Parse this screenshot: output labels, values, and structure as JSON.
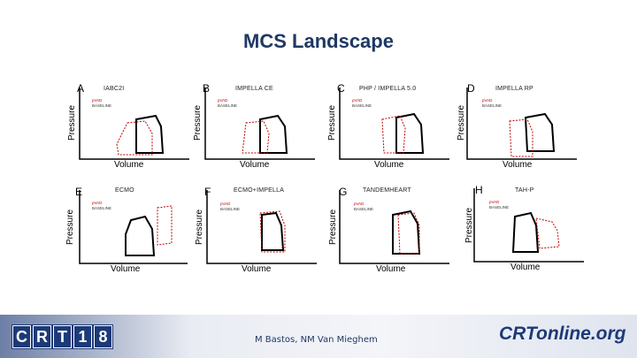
{
  "title": "MCS Landscape",
  "axis": {
    "y": "Pressure",
    "x": "Volume"
  },
  "legend": {
    "pvad": "pVAD",
    "baseline": "BASELINE"
  },
  "panels": [
    {
      "letter": "A",
      "label": "IABC2I"
    },
    {
      "letter": "B",
      "label": "IMPELLA CE"
    },
    {
      "letter": "C",
      "label": "PHP / IMPELLA 5.0"
    },
    {
      "letter": "D",
      "label": "IMPELLA RP"
    },
    {
      "letter": "E",
      "label": "ECMO"
    },
    {
      "letter": "F",
      "label": "ECMO+IMPELLA"
    },
    {
      "letter": "G",
      "label": "TANDEMHEART"
    },
    {
      "letter": "H",
      "label": "TAH-P"
    }
  ],
  "footer": {
    "logo": [
      "C",
      "R",
      "T",
      "1",
      "8"
    ],
    "authors": "M Bastos, NM Van Mieghem",
    "brand": "CRTonline.org"
  },
  "colors": {
    "title": "#1f3864",
    "pvad": "#c00000",
    "baseline": "#000000"
  }
}
